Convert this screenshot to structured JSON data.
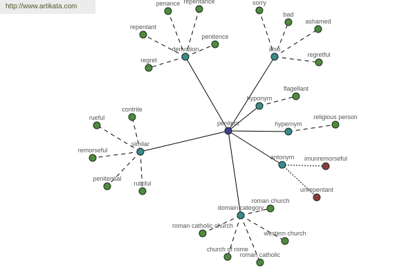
{
  "watermark": "http://www.artikata.com",
  "colors": {
    "root": "#3b3f8c",
    "relation": "#3b8a8e",
    "word": "#4f8a3f",
    "antonym_word": "#8a3b3d",
    "edge": "#000000"
  },
  "graph": {
    "root": "penitent",
    "relations": [
      {
        "id": "derivation",
        "label": "derivation",
        "words": [
          "penance",
          "repentance",
          "repentant",
          "penitence",
          "regret"
        ]
      },
      {
        "id": "also",
        "label": "also",
        "words": [
          "sorry",
          "bad",
          "ashamed",
          "regretful"
        ]
      },
      {
        "id": "hyponym",
        "label": "hyponym",
        "words": [
          "flagellant"
        ]
      },
      {
        "id": "hypernym",
        "label": "hypernym",
        "words": [
          "religious person"
        ]
      },
      {
        "id": "antonym",
        "label": "antonym",
        "words": [
          "imunremorseful",
          "unrepentant"
        ]
      },
      {
        "id": "similar",
        "label": "similar",
        "words": [
          "contrite",
          "rueful",
          "remorseful",
          "penitential",
          "ruthful"
        ]
      },
      {
        "id": "domain",
        "label": "domain category",
        "words": [
          "roman church",
          "roman catholic church",
          "western church",
          "church of rome",
          "roman catholic"
        ]
      }
    ]
  }
}
